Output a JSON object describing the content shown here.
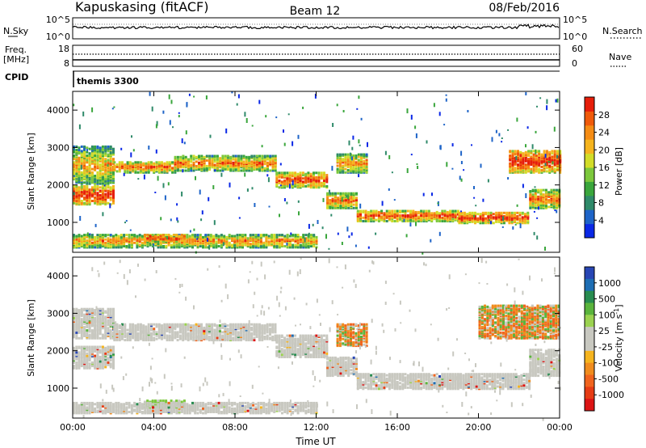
{
  "header": {
    "station": "Kapuskasing (fitACF)",
    "beam": "Beam 12",
    "date": "08/Feb/2016"
  },
  "top_panels": {
    "nsky": {
      "left_label": "N.Sky",
      "right_label": "N.Search",
      "left_ticks": [
        "10^5",
        "10^0"
      ],
      "right_ticks": [
        "10^5",
        "10^0"
      ]
    },
    "freq": {
      "left_label_1": "Freq.",
      "left_label_2": "[MHz]",
      "right_label": "Nave",
      "left_ticks": [
        "18",
        "8"
      ],
      "right_ticks": [
        "60",
        "0"
      ]
    },
    "cpid": {
      "label": "CPID",
      "value": "themis 3300"
    }
  },
  "chart_data": [
    {
      "type": "heatmap",
      "title": "",
      "ylabel": "Slant Range [km]",
      "xlabel": "",
      "quantity": "Power",
      "ylim": [
        200,
        4500
      ],
      "xlim": [
        0,
        24
      ],
      "yticks": [
        "1000",
        "2000",
        "3000",
        "4000"
      ],
      "x_tick_values": [
        0,
        4,
        8,
        12,
        16,
        20,
        24
      ],
      "colorbar": {
        "label": "Power [dB]",
        "ticks": [
          "4",
          "8",
          "12",
          "16",
          "20",
          "24",
          "28"
        ],
        "colors": [
          "#0a28e6",
          "#1e64c8",
          "#2f8a6a",
          "#3aa63c",
          "#7cc83c",
          "#d2dc28",
          "#f5b41e",
          "#f58c14",
          "#f05a0a",
          "#e61e0a"
        ]
      },
      "bands": [
        {
          "start": 0.0,
          "end": 2.0,
          "low": 1450,
          "high": 1950,
          "level": 0.85
        },
        {
          "start": 0.0,
          "end": 2.0,
          "low": 2000,
          "high": 3000,
          "level": 0.4
        },
        {
          "start": 2.0,
          "end": 5.0,
          "low": 2300,
          "high": 2600,
          "level": 0.6
        },
        {
          "start": 5.0,
          "end": 10.0,
          "low": 2350,
          "high": 2750,
          "level": 0.55
        },
        {
          "start": 10.0,
          "end": 12.5,
          "low": 1900,
          "high": 2300,
          "level": 0.75
        },
        {
          "start": 12.5,
          "end": 14.0,
          "low": 1350,
          "high": 1750,
          "level": 0.6
        },
        {
          "start": 14.0,
          "end": 19.0,
          "low": 1000,
          "high": 1300,
          "level": 0.7
        },
        {
          "start": 19.0,
          "end": 22.5,
          "low": 950,
          "high": 1250,
          "level": 0.8
        },
        {
          "start": 22.5,
          "end": 24.0,
          "low": 1350,
          "high": 1850,
          "level": 0.6
        },
        {
          "start": 21.5,
          "end": 24.0,
          "low": 2300,
          "high": 2900,
          "level": 0.85
        },
        {
          "start": 13.0,
          "end": 14.5,
          "low": 2300,
          "high": 2800,
          "level": 0.5
        },
        {
          "start": 0.0,
          "end": 12.0,
          "low": 300,
          "high": 650,
          "level": 0.5
        },
        {
          "start": 3.5,
          "end": 5.5,
          "low": 450,
          "high": 650,
          "level": 0.8
        }
      ]
    },
    {
      "type": "heatmap",
      "title": "",
      "ylabel": "Slant Range [km]",
      "xlabel": "Time UT",
      "quantity": "Velocity",
      "ylim": [
        200,
        4500
      ],
      "xlim": [
        0,
        24
      ],
      "yticks": [
        "1000",
        "2000",
        "3000",
        "4000"
      ],
      "xticks": [
        "00:00",
        "04:00",
        "08:00",
        "12:00",
        "16:00",
        "20:00",
        "00:00"
      ],
      "x_tick_values": [
        0,
        4,
        8,
        12,
        16,
        20,
        24
      ],
      "colorbar": {
        "label": "Velocity [m s",
        "label_sup": "-1",
        "label_end": "]",
        "ticks": [
          "1000",
          "500",
          "100",
          "25",
          "-25",
          "-100",
          "-500",
          "-1000"
        ],
        "colors": [
          "#2846b4",
          "#1e6eb4",
          "#288c50",
          "#5ab43c",
          "#9bd250",
          "#c8c8c0",
          "#c8c8c0",
          "#f5b41e",
          "#f08c1e",
          "#f0641e",
          "#e63c14",
          "#dc1414"
        ]
      },
      "bands": [
        {
          "start": 0.0,
          "end": 2.0,
          "low": 1500,
          "high": 2100,
          "kind": "grey"
        },
        {
          "start": 0.0,
          "end": 2.0,
          "low": 2300,
          "high": 3100,
          "kind": "grey"
        },
        {
          "start": 2.0,
          "end": 10.0,
          "low": 2250,
          "high": 2700,
          "kind": "grey"
        },
        {
          "start": 10.0,
          "end": 12.5,
          "low": 1800,
          "high": 2400,
          "kind": "grey"
        },
        {
          "start": 12.5,
          "end": 14.0,
          "low": 1300,
          "high": 1800,
          "kind": "grey"
        },
        {
          "start": 14.0,
          "end": 22.5,
          "low": 950,
          "high": 1350,
          "kind": "grey"
        },
        {
          "start": 22.5,
          "end": 24.0,
          "low": 1300,
          "high": 2000,
          "kind": "grey"
        },
        {
          "start": 13.0,
          "end": 14.5,
          "low": 2100,
          "high": 2700,
          "kind": "orange"
        },
        {
          "start": 20.0,
          "end": 24.0,
          "low": 2300,
          "high": 3200,
          "kind": "orange"
        },
        {
          "start": 3.5,
          "end": 5.5,
          "low": 450,
          "high": 650,
          "kind": "green"
        },
        {
          "start": 0.0,
          "end": 12.0,
          "low": 300,
          "high": 600,
          "kind": "grey"
        }
      ]
    }
  ]
}
